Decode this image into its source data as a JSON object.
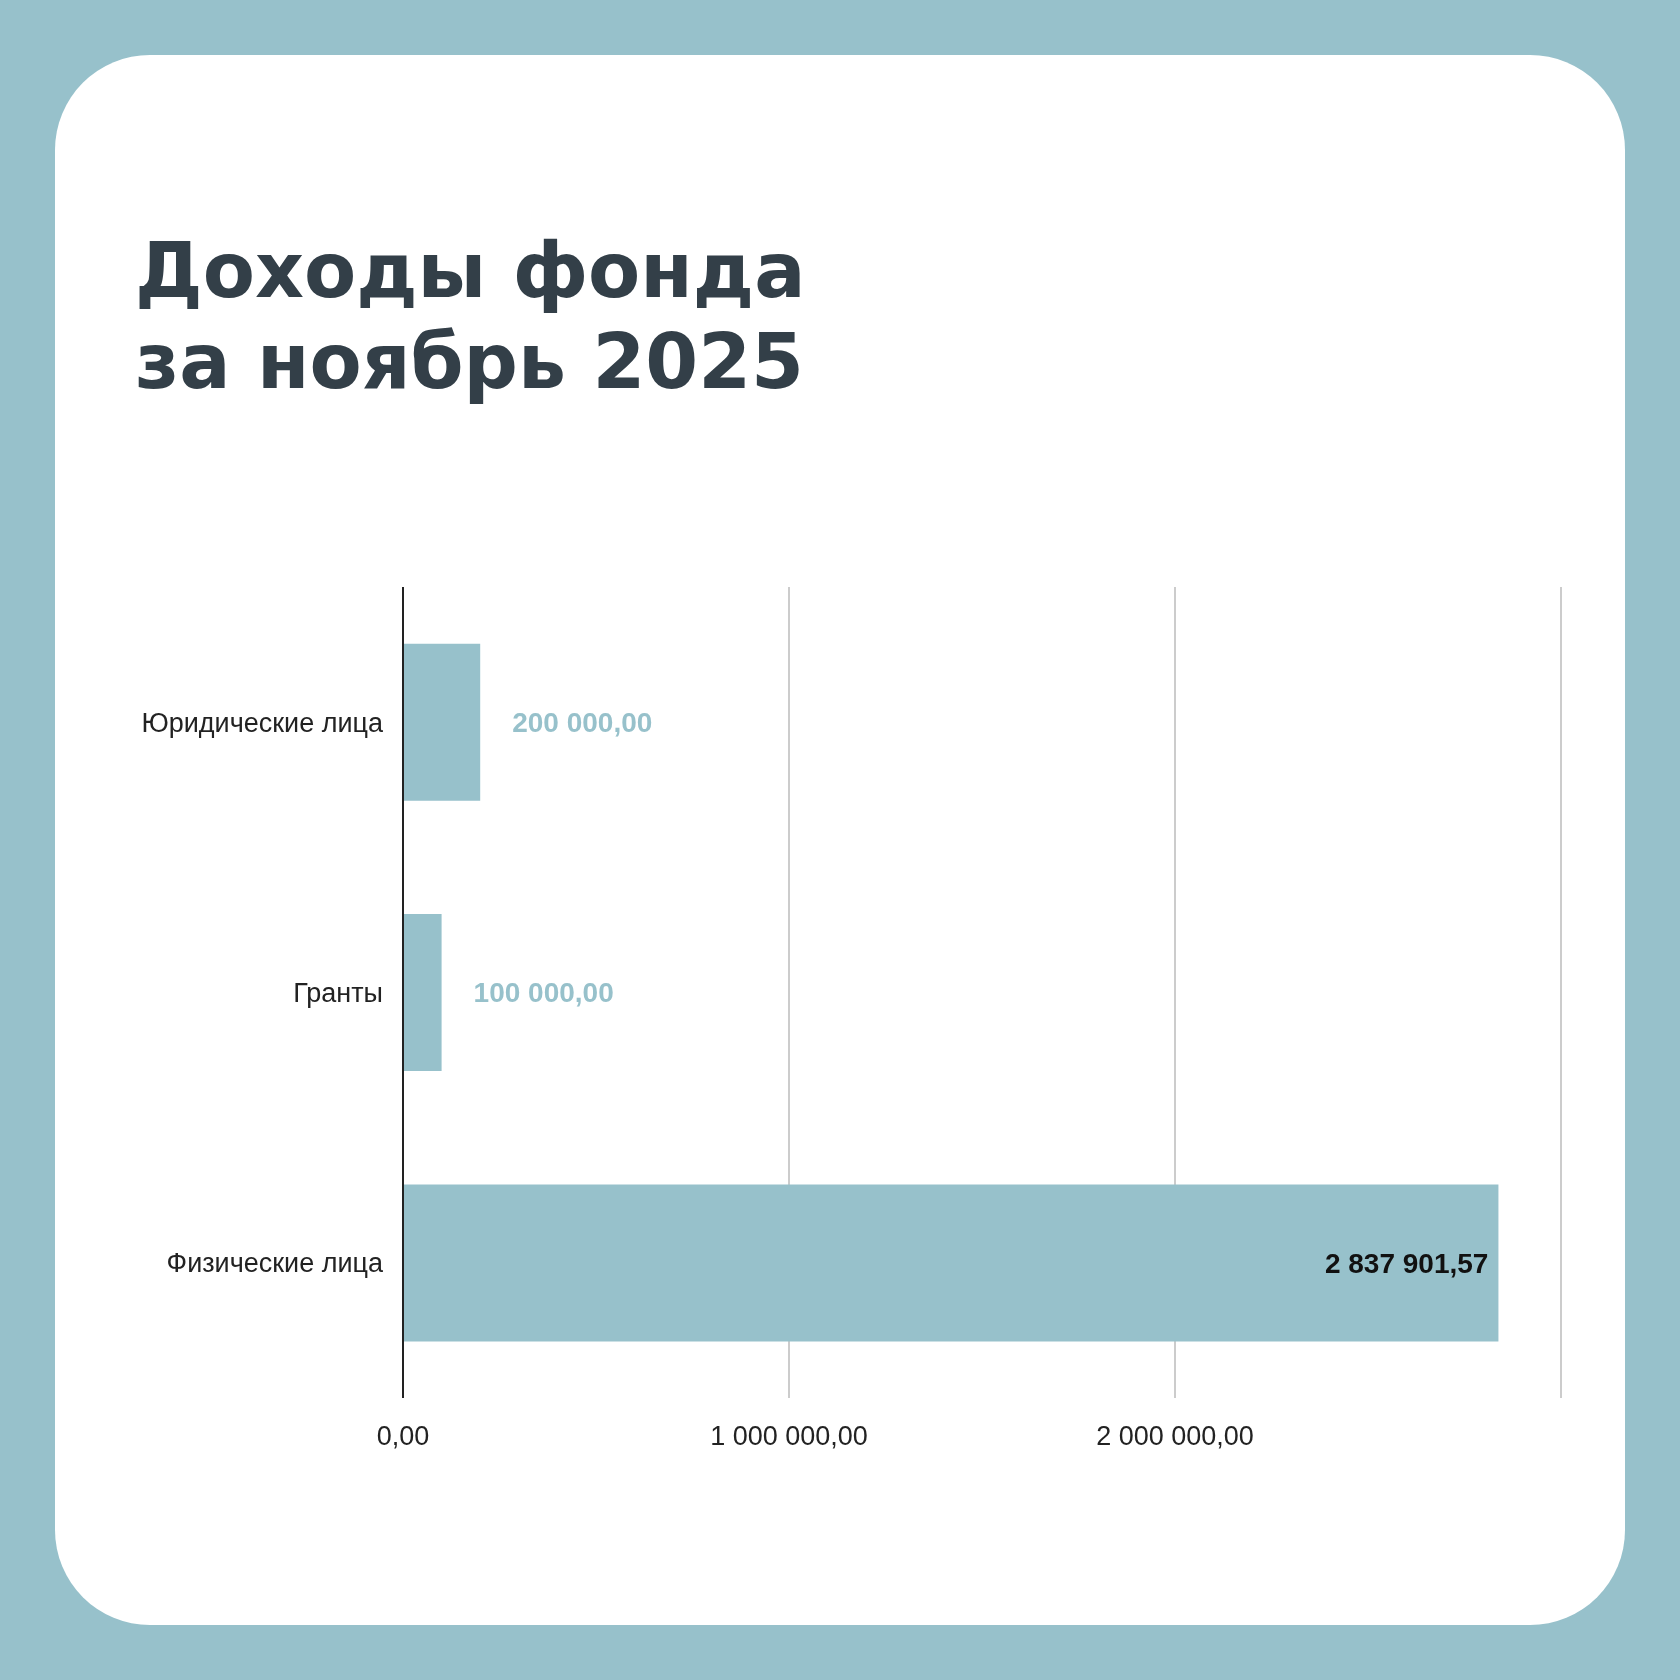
{
  "chart_data": {
    "type": "bar",
    "orientation": "horizontal",
    "title": "Доходы фонда за ноябрь 2025",
    "categories": [
      "Юридические лица",
      "Гранты",
      "Физические лица"
    ],
    "values": [
      200000,
      100000,
      2837901.57
    ],
    "value_labels": [
      "200 000,00",
      "100 000,00",
      "2 837 901,57"
    ],
    "color": "#97c1cb",
    "xlim": [
      0,
      3000000
    ],
    "xticks": [
      {
        "value": 0,
        "label": "0,00"
      },
      {
        "value": 1000000,
        "label": "1 000 000,00"
      },
      {
        "value": 2000000,
        "label": "2 000 000,00"
      },
      {
        "value": 3000000,
        "label": null
      }
    ],
    "grid": "x"
  }
}
